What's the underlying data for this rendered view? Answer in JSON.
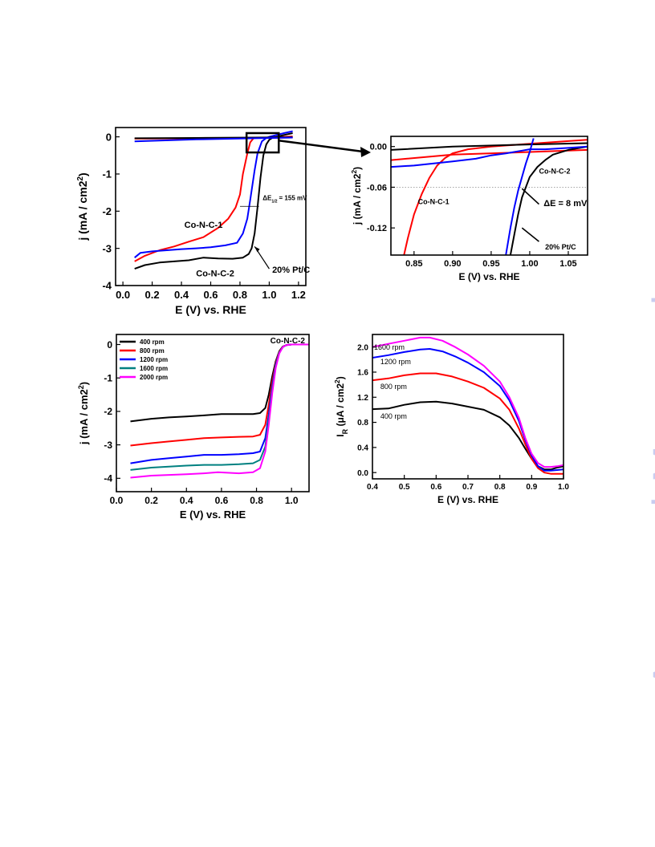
{
  "watermark": "Accepted Manuscript",
  "chart_data": [
    {
      "type": "line",
      "panel": "top-left",
      "xlabel": "E (V) vs. RHE",
      "ylabel": "j (mA / cm2)",
      "xlim": [
        -0.05,
        1.25
      ],
      "ylim": [
        -4,
        0.25
      ],
      "xticks": [
        0.0,
        0.2,
        0.4,
        0.6,
        0.8,
        1.0,
        1.2
      ],
      "yticks": [
        0,
        -1,
        -2,
        -3,
        -4
      ],
      "series": [
        {
          "name": "Co-N-C-1",
          "color": "#ff0000",
          "x": [
            0.08,
            0.15,
            0.25,
            0.35,
            0.45,
            0.55,
            0.65,
            0.72,
            0.77,
            0.8,
            0.82,
            0.85,
            0.87,
            0.89,
            0.9,
            0.95,
            1.0,
            1.05,
            1.1,
            1.16
          ],
          "y": [
            -3.35,
            -3.2,
            -3.05,
            -2.95,
            -2.82,
            -2.7,
            -2.45,
            -2.2,
            -1.9,
            -1.55,
            -1.0,
            -0.45,
            -0.15,
            -0.05,
            -0.03,
            -0.03,
            -0.02,
            -0.01,
            0.0,
            0.01
          ]
        },
        {
          "name": "Co-N-C-2",
          "color": "#000000",
          "x": [
            0.08,
            0.15,
            0.25,
            0.35,
            0.45,
            0.55,
            0.65,
            0.75,
            0.82,
            0.86,
            0.88,
            0.9,
            0.92,
            0.94,
            0.96,
            0.98,
            1.0,
            1.02,
            1.05,
            1.1,
            1.16
          ],
          "y": [
            -3.55,
            -3.45,
            -3.38,
            -3.35,
            -3.32,
            -3.25,
            -3.27,
            -3.28,
            -3.25,
            -3.15,
            -3.0,
            -2.6,
            -1.9,
            -1.1,
            -0.5,
            -0.2,
            -0.08,
            -0.03,
            0.0,
            0.05,
            0.1
          ]
        },
        {
          "name": "20% Pt/C",
          "color": "#0000ff",
          "x": [
            0.08,
            0.12,
            0.2,
            0.3,
            0.4,
            0.5,
            0.6,
            0.7,
            0.78,
            0.82,
            0.85,
            0.87,
            0.9,
            0.92,
            0.95,
            0.98,
            1.0,
            1.05,
            1.1,
            1.16
          ],
          "y": [
            -3.25,
            -3.12,
            -3.08,
            -3.05,
            -3.02,
            -3.0,
            -2.97,
            -2.92,
            -2.85,
            -2.6,
            -2.2,
            -1.7,
            -0.9,
            -0.45,
            -0.12,
            -0.03,
            0.0,
            0.05,
            0.1,
            0.15
          ]
        },
        {
          "name": "",
          "color": "#ff0000",
          "x": [
            0.08,
            0.5,
            0.9,
            1.16
          ],
          "y": [
            -0.05,
            -0.04,
            -0.03,
            -0.02
          ]
        },
        {
          "name": "",
          "color": "#000000",
          "x": [
            0.08,
            0.5,
            0.9,
            1.16
          ],
          "y": [
            -0.04,
            -0.03,
            -0.02,
            -0.01
          ]
        },
        {
          "name": "",
          "color": "#0000ff",
          "x": [
            0.08,
            0.5,
            0.9,
            1.16
          ],
          "y": [
            -0.12,
            -0.07,
            -0.04,
            -0.02
          ]
        }
      ],
      "annotations": [
        {
          "text": "Co-N-C-1",
          "x": 0.42,
          "y": -2.45
        },
        {
          "text": "Co-N-C-2",
          "x": 0.5,
          "y": -3.75
        },
        {
          "text": "20% Pt/C",
          "x": 1.02,
          "y": -3.65
        },
        {
          "text": "ΔE",
          "sub": "1/2",
          "value": "= 155 mV",
          "x": 0.955,
          "y": -1.7
        }
      ]
    },
    {
      "type": "line",
      "panel": "top-right",
      "xlabel": "E (V) vs. RHE",
      "ylabel": "j (mA / cm2)",
      "xlim": [
        0.82,
        1.075
      ],
      "ylim": [
        -0.16,
        0.015
      ],
      "xticks": [
        0.85,
        0.9,
        0.95,
        1.0,
        1.05
      ],
      "yticks": [
        0.0,
        -0.06,
        -0.12
      ],
      "ytick_labels": [
        "0.00",
        "-0.06",
        "-0.12"
      ],
      "dotted_line_y": -0.06,
      "series": [
        {
          "name": "Co-N-C-1",
          "color": "#ff0000",
          "x": [
            0.837,
            0.842,
            0.85,
            0.86,
            0.87,
            0.88,
            0.89,
            0.9,
            0.92,
            0.95,
            1.0,
            1.05,
            1.075
          ],
          "y": [
            -0.16,
            -0.135,
            -0.1,
            -0.07,
            -0.046,
            -0.028,
            -0.017,
            -0.01,
            -0.004,
            0.0,
            0.004,
            0.008,
            0.01
          ]
        },
        {
          "name": "",
          "color": "#ff0000",
          "x": [
            0.82,
            0.9,
            1.0,
            1.075
          ],
          "y": [
            -0.02,
            -0.012,
            -0.008,
            -0.005
          ]
        },
        {
          "name": "Co-N-C-2",
          "color": "#000000",
          "x": [
            0.82,
            0.9,
            1.0,
            1.075
          ],
          "y": [
            -0.005,
            0.0,
            0.003,
            0.005
          ]
        },
        {
          "name": "",
          "color": "#000000",
          "x": [
            0.975,
            0.98,
            0.985,
            0.99,
            1.0,
            1.01,
            1.02,
            1.03,
            1.05,
            1.075
          ],
          "y": [
            -0.16,
            -0.13,
            -0.1,
            -0.075,
            -0.045,
            -0.03,
            -0.02,
            -0.012,
            -0.005,
            0.0
          ]
        },
        {
          "name": "20% Pt/C",
          "color": "#0000ff",
          "x": [
            0.969,
            0.975,
            0.98,
            0.985,
            0.99,
            0.995,
            1.0,
            1.005
          ],
          "y": [
            -0.16,
            -0.12,
            -0.09,
            -0.065,
            -0.045,
            -0.025,
            -0.008,
            0.012
          ]
        },
        {
          "name": "",
          "color": "#0000ff",
          "x": [
            0.82,
            0.85,
            0.9,
            0.93,
            0.95,
            0.97,
            0.99,
            1.0,
            1.02,
            1.05,
            1.075
          ],
          "y": [
            -0.03,
            -0.028,
            -0.022,
            -0.018,
            -0.013,
            -0.01,
            -0.006,
            -0.004,
            -0.004,
            -0.002,
            0.0
          ]
        }
      ],
      "annotations": [
        {
          "text": "Co-N-C-1",
          "x": 0.855,
          "y": -0.085
        },
        {
          "text": "Co-N-C-2",
          "x": 1.012,
          "y": -0.04
        },
        {
          "text": "ΔE = 8 mV",
          "x": 1.018,
          "y": -0.088
        },
        {
          "text": "20% Pt/C",
          "x": 1.02,
          "y": -0.152
        }
      ]
    },
    {
      "type": "line",
      "panel": "bottom-left",
      "title": "Co-N-C-2",
      "xlabel": "E (V) vs. RHE",
      "ylabel": "j (mA / cm2)",
      "xlim": [
        0.0,
        1.1
      ],
      "ylim": [
        -4.4,
        0.3
      ],
      "xticks": [
        0.0,
        0.2,
        0.4,
        0.6,
        0.8,
        1.0
      ],
      "yticks": [
        0,
        -1,
        -2,
        -3,
        -4
      ],
      "legend": "top-left",
      "series": [
        {
          "name": "400 rpm",
          "color": "#000000",
          "x": [
            0.08,
            0.2,
            0.3,
            0.4,
            0.5,
            0.6,
            0.7,
            0.78,
            0.82,
            0.85,
            0.87,
            0.89,
            0.91,
            0.93,
            0.95,
            0.97,
            1.0,
            1.05,
            1.1
          ],
          "y": [
            -2.3,
            -2.22,
            -2.18,
            -2.15,
            -2.12,
            -2.08,
            -2.08,
            -2.08,
            -2.05,
            -1.9,
            -1.5,
            -0.95,
            -0.5,
            -0.2,
            -0.06,
            -0.02,
            0.0,
            0.0,
            0.0
          ]
        },
        {
          "name": "800 rpm",
          "color": "#ff0000",
          "x": [
            0.08,
            0.2,
            0.3,
            0.4,
            0.5,
            0.6,
            0.7,
            0.78,
            0.82,
            0.85,
            0.87,
            0.89,
            0.91,
            0.93,
            0.95,
            0.97,
            1.0,
            1.05,
            1.1
          ],
          "y": [
            -3.02,
            -2.95,
            -2.9,
            -2.85,
            -2.8,
            -2.78,
            -2.76,
            -2.75,
            -2.7,
            -2.4,
            -1.8,
            -1.1,
            -0.55,
            -0.22,
            -0.07,
            -0.02,
            0.0,
            0.0,
            0.0
          ]
        },
        {
          "name": "1200 rpm",
          "color": "#0000ff",
          "x": [
            0.08,
            0.2,
            0.3,
            0.4,
            0.5,
            0.6,
            0.7,
            0.78,
            0.82,
            0.85,
            0.87,
            0.89,
            0.91,
            0.93,
            0.95,
            0.97,
            1.0,
            1.05,
            1.1
          ],
          "y": [
            -3.55,
            -3.45,
            -3.4,
            -3.35,
            -3.3,
            -3.3,
            -3.28,
            -3.25,
            -3.2,
            -2.8,
            -2.1,
            -1.25,
            -0.6,
            -0.24,
            -0.08,
            -0.02,
            0.0,
            0.0,
            0.0
          ]
        },
        {
          "name": "1600 rpm",
          "color": "#008080",
          "x": [
            0.08,
            0.2,
            0.3,
            0.4,
            0.5,
            0.6,
            0.7,
            0.78,
            0.82,
            0.85,
            0.87,
            0.89,
            0.91,
            0.93,
            0.95,
            0.97,
            1.0,
            1.05,
            1.1
          ],
          "y": [
            -3.75,
            -3.68,
            -3.65,
            -3.62,
            -3.6,
            -3.6,
            -3.58,
            -3.55,
            -3.45,
            -3.05,
            -2.25,
            -1.35,
            -0.65,
            -0.25,
            -0.08,
            -0.02,
            0.0,
            0.0,
            0.0
          ]
        },
        {
          "name": "2000 rpm",
          "color": "#ff00ff",
          "x": [
            0.08,
            0.2,
            0.3,
            0.4,
            0.5,
            0.58,
            0.7,
            0.78,
            0.82,
            0.85,
            0.87,
            0.89,
            0.91,
            0.93,
            0.95,
            0.97,
            1.0,
            1.05,
            1.1
          ],
          "y": [
            -3.98,
            -3.92,
            -3.9,
            -3.88,
            -3.85,
            -3.82,
            -3.85,
            -3.82,
            -3.7,
            -3.2,
            -2.4,
            -1.45,
            -0.7,
            -0.27,
            -0.08,
            -0.02,
            0.0,
            0.0,
            0.0
          ]
        }
      ]
    },
    {
      "type": "line",
      "panel": "bottom-right",
      "xlabel": "E (V) vs. RHE",
      "ylabel": "IR (μA / cm2)",
      "xlim": [
        0.4,
        1.0
      ],
      "ylim": [
        -0.1,
        2.2
      ],
      "xticks": [
        0.4,
        0.5,
        0.6,
        0.7,
        0.8,
        0.9,
        1.0
      ],
      "yticks": [
        0.0,
        0.4,
        0.8,
        1.2,
        1.6,
        2.0
      ],
      "ytick_labels": [
        "0.0",
        "0.4",
        "0.8",
        "1.2",
        "1.6",
        "2.0"
      ],
      "series": [
        {
          "name": "400 rpm",
          "color": "#000000",
          "x": [
            0.4,
            0.45,
            0.5,
            0.55,
            0.6,
            0.65,
            0.7,
            0.75,
            0.8,
            0.83,
            0.86,
            0.88,
            0.9,
            0.92,
            0.94,
            0.96,
            0.98,
            1.0
          ],
          "y": [
            1.01,
            1.02,
            1.08,
            1.12,
            1.13,
            1.1,
            1.05,
            1.0,
            0.88,
            0.75,
            0.55,
            0.38,
            0.22,
            0.1,
            0.05,
            0.05,
            0.08,
            0.1
          ]
        },
        {
          "name": "800 rpm",
          "color": "#ff0000",
          "x": [
            0.4,
            0.45,
            0.5,
            0.55,
            0.6,
            0.65,
            0.7,
            0.75,
            0.8,
            0.83,
            0.86,
            0.88,
            0.9,
            0.92,
            0.94,
            0.96,
            0.98,
            1.0
          ],
          "y": [
            1.47,
            1.5,
            1.55,
            1.58,
            1.58,
            1.53,
            1.45,
            1.35,
            1.18,
            1.0,
            0.7,
            0.45,
            0.22,
            0.07,
            0.0,
            -0.02,
            -0.02,
            -0.02
          ]
        },
        {
          "name": "1200 rpm",
          "color": "#0000ff",
          "x": [
            0.4,
            0.45,
            0.5,
            0.55,
            0.58,
            0.62,
            0.66,
            0.7,
            0.75,
            0.8,
            0.83,
            0.86,
            0.88,
            0.9,
            0.92,
            0.94,
            0.96,
            0.98,
            1.0
          ],
          "y": [
            1.83,
            1.87,
            1.92,
            1.96,
            1.97,
            1.93,
            1.85,
            1.75,
            1.6,
            1.38,
            1.15,
            0.82,
            0.52,
            0.27,
            0.1,
            0.03,
            0.03,
            0.04,
            0.05
          ]
        },
        {
          "name": "1600 rpm",
          "color": "#ff00ff",
          "x": [
            0.4,
            0.45,
            0.5,
            0.55,
            0.58,
            0.62,
            0.66,
            0.7,
            0.75,
            0.8,
            0.83,
            0.86,
            0.88,
            0.9,
            0.92,
            0.94,
            0.96,
            0.98,
            1.0
          ],
          "y": [
            2.0,
            2.05,
            2.1,
            2.15,
            2.15,
            2.1,
            2.0,
            1.88,
            1.7,
            1.45,
            1.2,
            0.87,
            0.55,
            0.3,
            0.15,
            0.09,
            0.09,
            0.1,
            0.12
          ]
        }
      ],
      "annotations": [
        {
          "text": "1600 rpm",
          "x": 0.405,
          "y": 1.96
        },
        {
          "text": "1200 rpm",
          "x": 0.425,
          "y": 1.73
        },
        {
          "text": "800 rpm",
          "x": 0.425,
          "y": 1.33
        },
        {
          "text": "400 rpm",
          "x": 0.425,
          "y": 0.86
        }
      ]
    }
  ]
}
